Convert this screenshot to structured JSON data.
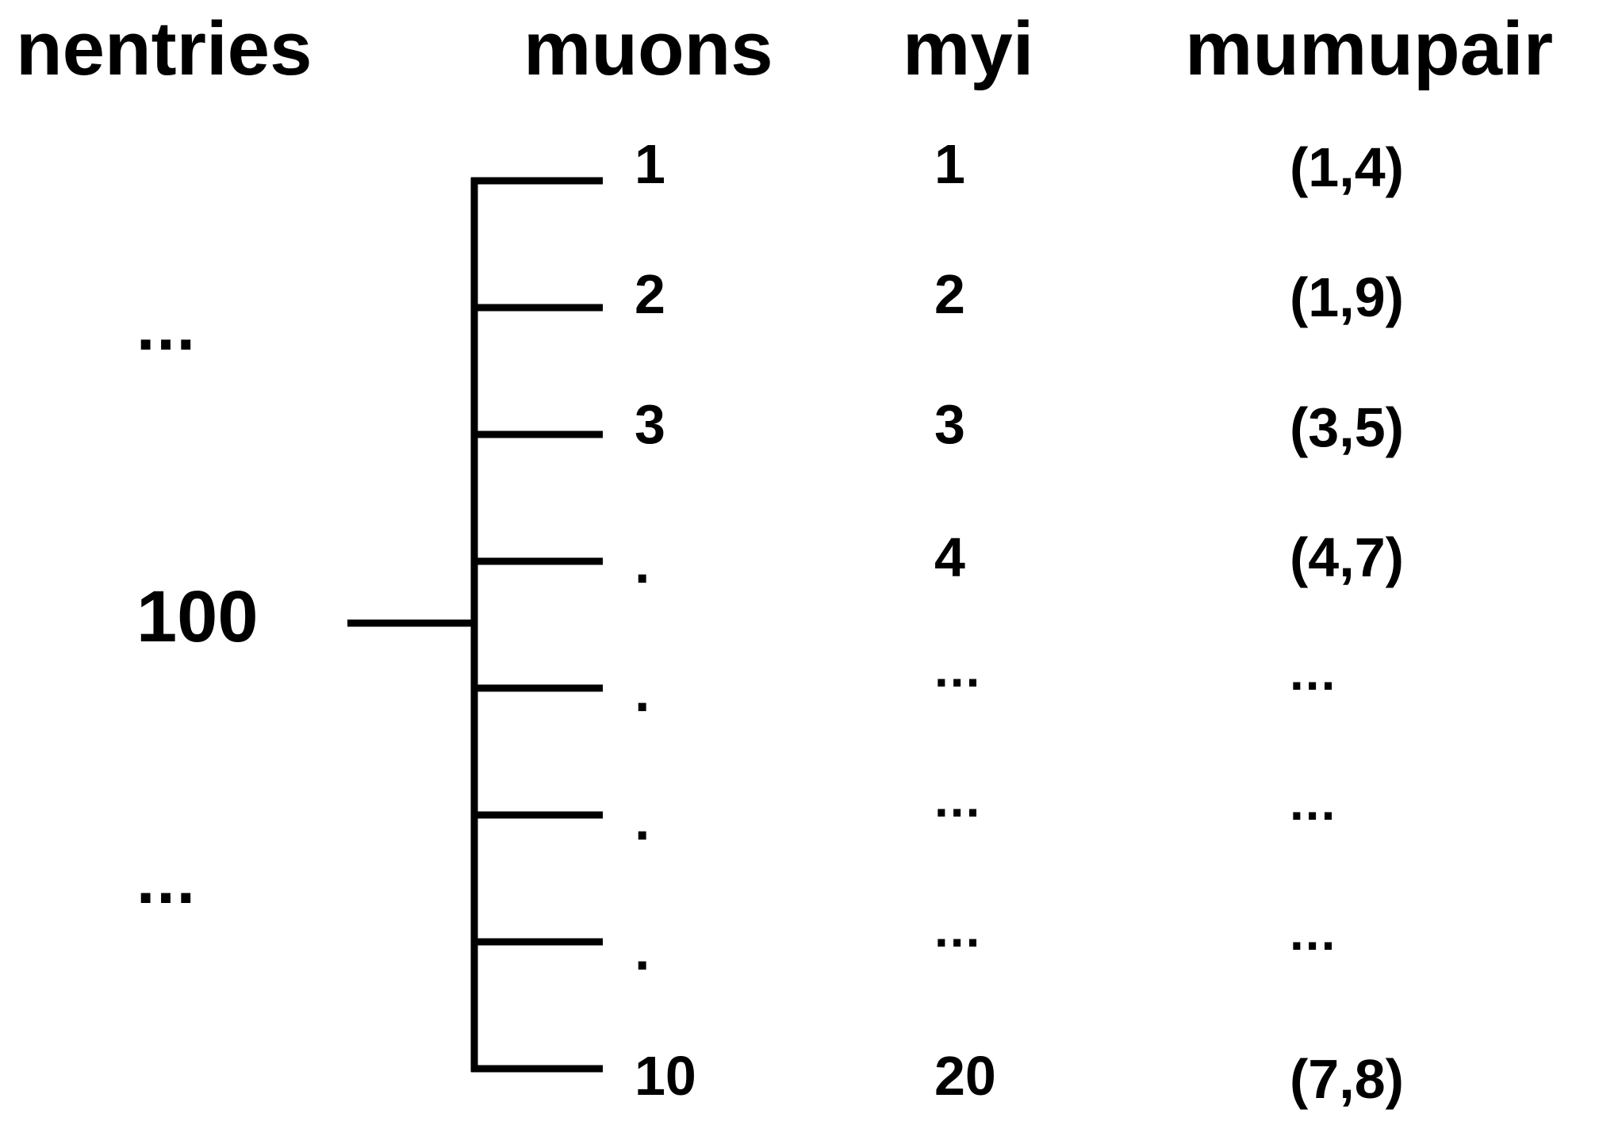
{
  "headers": {
    "nentries": "nentries",
    "muons": "muons",
    "myi": "myi",
    "mumupair": "mumupair"
  },
  "nentries": {
    "top_ellipsis": "...",
    "value": "100",
    "bottom_ellipsis": "..."
  },
  "muons": [
    "1",
    "2",
    "3",
    ".",
    ".",
    ".",
    ".",
    "10"
  ],
  "myi": [
    "1",
    "2",
    "3",
    "4",
    "...",
    "...",
    "...",
    "20"
  ],
  "mumupair": [
    "(1,4)",
    "(1,9)",
    "(3,5)",
    "(4,7)",
    "...",
    "...",
    "...",
    "(7,8)"
  ],
  "colors": {
    "text": "#000000",
    "line": "#000000",
    "background": "#ffffff"
  }
}
